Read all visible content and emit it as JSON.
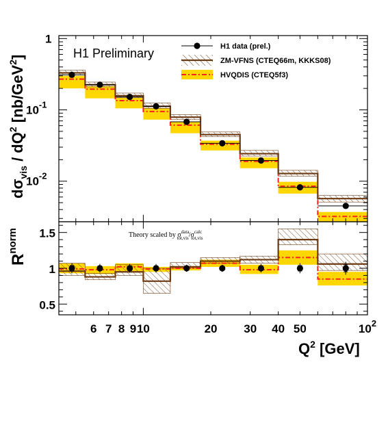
{
  "colors": {
    "data": "#000000",
    "zmvfns": "#6b3a13",
    "hvqdis_line": "#ff2020",
    "hvqdis_band": "#ffd700"
  },
  "chart_data": [
    {
      "type": "line",
      "annotation": "H1 Preliminary",
      "ylabel_main": "dσ",
      "ylabel_sub": "vis",
      "ylabel_rest": " / dQ",
      "ylabel_sup": "2",
      "ylabel_unit": " [nb/GeV",
      "ylabel_unit_sup": "2",
      "ylabel_close": "]",
      "xscale": "log",
      "yscale": "log",
      "xlim": [
        4.2,
        100
      ],
      "ylim": [
        0.0027,
        1.1
      ],
      "yticks": [
        {
          "value": 1,
          "label": "1",
          "sup": ""
        },
        {
          "value": 0.1,
          "label": "10",
          "sup": "-1"
        },
        {
          "value": 0.01,
          "label": "10",
          "sup": "-2"
        }
      ],
      "bin_edges": [
        4.2,
        5.5,
        7.5,
        10,
        13.2,
        18,
        27,
        40,
        60,
        100
      ],
      "legend": [
        {
          "label": "H1 data (prel.)",
          "kind": "data"
        },
        {
          "label": "ZM-VFNS (CTEQ66m, KKKS08)",
          "kind": "zmvfns"
        },
        {
          "label": "HVQDIS (CTEQ5f3)",
          "kind": "hvqdis"
        }
      ],
      "legend_position": "top-right",
      "series": [
        {
          "name": "H1 data (prel.)",
          "kind": "data",
          "x": [
            4.8,
            6.4,
            8.7,
            11.4,
            15.6,
            22.5,
            33.5,
            50,
            80
          ],
          "y": [
            0.31,
            0.225,
            0.152,
            0.112,
            0.068,
            0.034,
            0.0195,
            0.0082,
            0.0045
          ]
        },
        {
          "name": "ZM-VFNS (CTEQ66m, KKKS08)",
          "kind": "zmvfns",
          "central": [
            0.33,
            0.225,
            0.158,
            0.112,
            0.079,
            0.045,
            0.0243,
            0.0128,
            0.0057
          ],
          "low": [
            0.31,
            0.21,
            0.148,
            0.105,
            0.073,
            0.042,
            0.0225,
            0.0118,
            0.0051
          ],
          "high": [
            0.36,
            0.245,
            0.172,
            0.125,
            0.086,
            0.049,
            0.027,
            0.0142,
            0.0063
          ]
        },
        {
          "name": "HVQDIS (CTEQ5f3)",
          "kind": "hvqdis",
          "central": [
            0.27,
            0.195,
            0.135,
            0.095,
            0.061,
            0.033,
            0.019,
            0.0085,
            0.0032
          ],
          "low": [
            0.2,
            0.145,
            0.105,
            0.073,
            0.047,
            0.027,
            0.0152,
            0.0067,
            0.0027
          ],
          "high": [
            0.3,
            0.215,
            0.148,
            0.105,
            0.068,
            0.037,
            0.0215,
            0.0098,
            0.0037
          ]
        }
      ]
    },
    {
      "type": "line",
      "note_pre": "Theory scaled by σ",
      "note_sup1": "data",
      "note_sub1": "tot,vis",
      "note_mid": "/σ",
      "note_sup2": "calc",
      "note_sub2": "tot,vis",
      "ylabel": "R",
      "ylabel_sup": "norm",
      "xlabel": "Q",
      "xlabel_sup": "2",
      "xlabel_unit": " [GeV]",
      "xscale": "log",
      "xlim": [
        4.2,
        100
      ],
      "ylim": [
        0.35,
        1.65
      ],
      "yticks": [
        {
          "value": 1.5,
          "label": "1.5"
        },
        {
          "value": 1,
          "label": "1"
        },
        {
          "value": 0.5,
          "label": "0.5"
        }
      ],
      "xticks": [
        {
          "value": 6,
          "label": "6"
        },
        {
          "value": 7,
          "label": "7"
        },
        {
          "value": 8,
          "label": "8"
        },
        {
          "value": 9,
          "label": "9"
        },
        {
          "value": 10,
          "label": "10"
        },
        {
          "value": 20,
          "label": "20"
        },
        {
          "value": 30,
          "label": "30"
        },
        {
          "value": 40,
          "label": "40"
        },
        {
          "value": 50,
          "label": "50"
        },
        {
          "value": 100,
          "label": "10",
          "sup": "2"
        }
      ],
      "bin_edges": [
        4.2,
        5.5,
        7.5,
        10,
        13.2,
        18,
        27,
        40,
        60,
        100
      ],
      "series": [
        {
          "name": "H1 data (prel.)",
          "kind": "data",
          "x": [
            4.8,
            6.4,
            8.7,
            11.4,
            15.6,
            22.5,
            33.5,
            50,
            80
          ],
          "y": [
            1.0,
            1.0,
            1.0,
            1.0,
            1.0,
            1.0,
            1.0,
            1.0,
            1.0
          ],
          "err": [
            0.07,
            0.06,
            0.06,
            0.06,
            0.05,
            0.05,
            0.06,
            0.07,
            0.09
          ]
        },
        {
          "name": "ZM-VFNS (CTEQ66m, KKKS08)",
          "kind": "zmvfns",
          "central": [
            0.96,
            0.88,
            0.95,
            0.82,
            1.02,
            1.1,
            1.12,
            1.4,
            1.06
          ],
          "low": [
            0.9,
            0.84,
            0.9,
            0.65,
            1.0,
            1.07,
            1.07,
            1.33,
            0.97
          ],
          "high": [
            1.07,
            0.93,
            1.05,
            1.0,
            1.08,
            1.15,
            1.17,
            1.55,
            1.2
          ]
        },
        {
          "name": "HVQDIS (CTEQ5f3)",
          "kind": "hvqdis",
          "central": [
            0.99,
            0.98,
            1.02,
            0.99,
            1.0,
            1.07,
            0.98,
            1.15,
            0.85
          ],
          "low": [
            0.93,
            0.92,
            0.96,
            0.95,
            0.97,
            1.02,
            0.92,
            1.05,
            0.76
          ],
          "high": [
            1.07,
            1.03,
            1.07,
            1.02,
            1.03,
            1.12,
            1.05,
            1.25,
            0.95
          ]
        }
      ]
    }
  ]
}
